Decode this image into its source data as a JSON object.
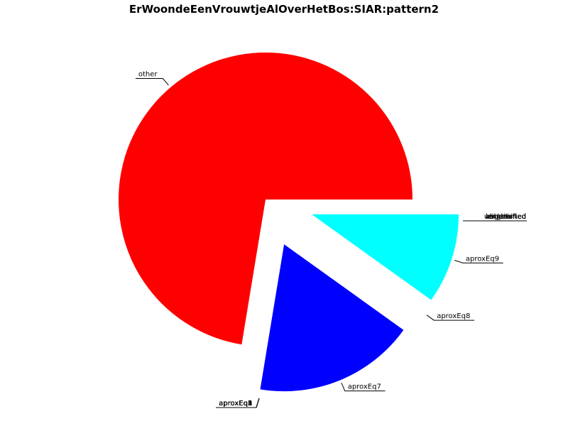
{
  "chart_data": {
    "type": "pie",
    "title": "ErWoondeEenVrouwtjeAlOverHetBos:SIAR:pattern2",
    "slices": [
      {
        "label": "other",
        "value": 72.4,
        "color": "#ff0000"
      },
      {
        "label": "aproxEq7",
        "value": 17.7,
        "color": "#0000ff"
      },
      {
        "label": "aproxEq8",
        "value": 0.0,
        "color": "#ffffff"
      },
      {
        "label": "aproxEq9",
        "value": 9.9,
        "color": "#00ffff"
      }
    ],
    "overlapping_labels_bottom": [
      "aproxEq1",
      "aproxEq2",
      "aproxEq3",
      "aproxEq4",
      "aproxEq5"
    ],
    "overlapping_labels_right": [
      "unclassified",
      "lengthened",
      "augmented",
      "diminished",
      "shortened"
    ]
  }
}
